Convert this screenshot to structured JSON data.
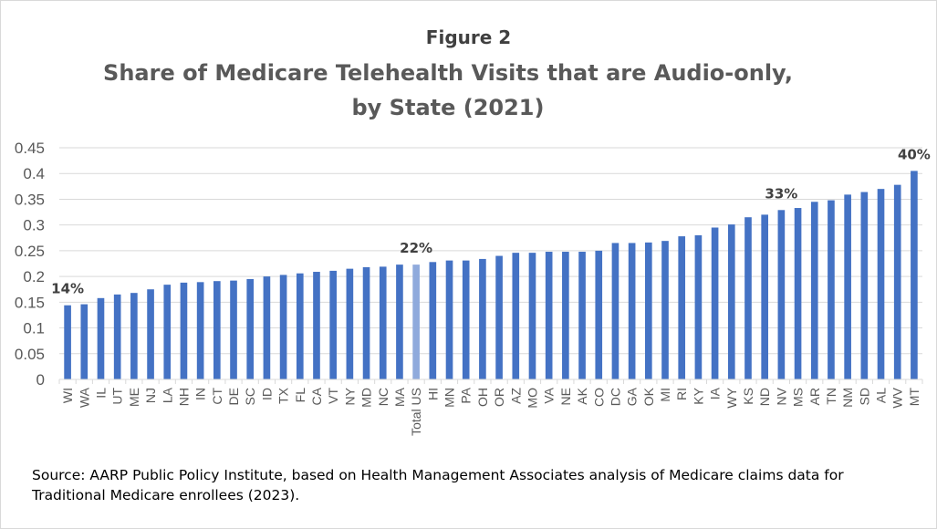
{
  "figure_label": "Figure 2",
  "title": "Share of Medicare Telehealth Visits that are Audio-only, by State (2021)",
  "source": "Source: AARP Public Policy Institute, based on Health Management Associates analysis of Medicare claims data for Traditional Medicare enrollees (2023).",
  "colors": {
    "bar": "#4472c4",
    "highlight": "#8faadc",
    "grid": "#d9d9d9",
    "axis_text": "#595959"
  },
  "chart_data": {
    "type": "bar",
    "title": "Share of Medicare Telehealth Visits that are Audio-only, by State (2021)",
    "xlabel": "",
    "ylabel": "",
    "ylim": [
      0,
      0.45
    ],
    "yticks": [
      "0",
      "0.05",
      "0.1",
      "0.15",
      "0.2",
      "0.25",
      "0.3",
      "0.35",
      "0.4",
      "0.45"
    ],
    "grid": true,
    "legend": "none",
    "categories": [
      "WI",
      "WA",
      "IL",
      "UT",
      "ME",
      "NJ",
      "LA",
      "NH",
      "IN",
      "CT",
      "DE",
      "SC",
      "ID",
      "TX",
      "FL",
      "CA",
      "VT",
      "NY",
      "MD",
      "NC",
      "MA",
      "Total US",
      "HI",
      "MN",
      "PA",
      "OH",
      "OR",
      "AZ",
      "MO",
      "VA",
      "NE",
      "AK",
      "CO",
      "DC",
      "GA",
      "OK",
      "MI",
      "RI",
      "KY",
      "IA",
      "WY",
      "KS",
      "ND",
      "NV",
      "MS",
      "AR",
      "TN",
      "NM",
      "SD",
      "AL",
      "WV",
      "MT"
    ],
    "values": [
      0.144,
      0.146,
      0.158,
      0.165,
      0.168,
      0.175,
      0.184,
      0.188,
      0.189,
      0.191,
      0.192,
      0.195,
      0.2,
      0.203,
      0.206,
      0.209,
      0.211,
      0.215,
      0.218,
      0.219,
      0.223,
      0.223,
      0.228,
      0.231,
      0.231,
      0.234,
      0.24,
      0.246,
      0.246,
      0.248,
      0.248,
      0.248,
      0.25,
      0.265,
      0.265,
      0.266,
      0.269,
      0.278,
      0.28,
      0.295,
      0.301,
      0.315,
      0.32,
      0.329,
      0.333,
      0.345,
      0.348,
      0.359,
      0.364,
      0.37,
      0.378,
      0.405
    ],
    "highlight_category": "Total US",
    "annotations": [
      {
        "category": "WI",
        "text": "14%"
      },
      {
        "category": "Total US",
        "text": "22%"
      },
      {
        "category": "NV",
        "text": "33%"
      },
      {
        "category": "MT",
        "text": "40%"
      }
    ]
  }
}
